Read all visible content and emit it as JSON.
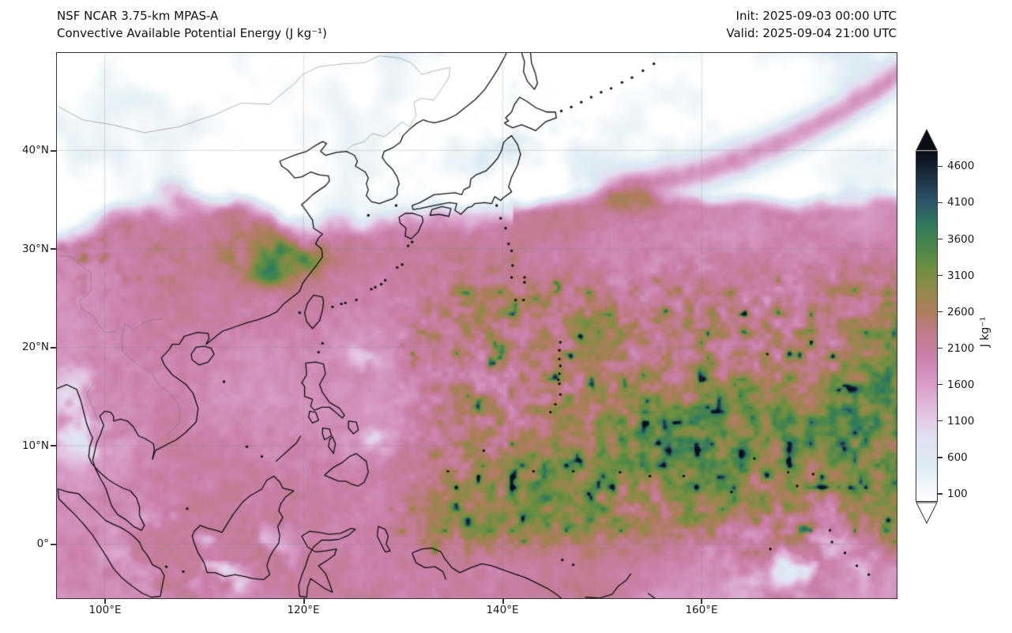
{
  "title": {
    "line1": "NSF NCAR 3.75-km MPAS-A",
    "line2": "Convective Available Potential Energy (J kg⁻¹)"
  },
  "timestamps": {
    "init": "Init: 2025-09-03 00:00 UTC",
    "valid": "Valid: 2025-09-04 21:00 UTC"
  },
  "axes": {
    "y_ticks": [
      "40°N",
      "30°N",
      "20°N",
      "10°N",
      "0°"
    ],
    "x_ticks": [
      "100°E",
      "120°E",
      "140°E",
      "160°E"
    ]
  },
  "colorbar": {
    "unit": "J kg⁻¹",
    "tick_labels": [
      "4600",
      "4100",
      "3600",
      "3100",
      "2600",
      "2100",
      "1600",
      "1100",
      "600",
      "100"
    ],
    "tick_values": [
      4600,
      4100,
      3600,
      3100,
      2600,
      2100,
      1600,
      1100,
      600,
      100
    ],
    "range": [
      0,
      4800
    ],
    "stops": [
      {
        "v": 0,
        "c": "#ffffff"
      },
      {
        "v": 500,
        "c": "#dcebf3"
      },
      {
        "v": 900,
        "c": "#e2dff0"
      },
      {
        "v": 1200,
        "c": "#e2c3e0"
      },
      {
        "v": 1600,
        "c": "#d79cc6"
      },
      {
        "v": 2000,
        "c": "#c97fa8"
      },
      {
        "v": 2300,
        "c": "#c07b8c"
      },
      {
        "v": 2600,
        "c": "#ad7d5c"
      },
      {
        "v": 2900,
        "c": "#91894a"
      },
      {
        "v": 3200,
        "c": "#6e8f41"
      },
      {
        "v": 3500,
        "c": "#49864b"
      },
      {
        "v": 3800,
        "c": "#2f7a5e"
      },
      {
        "v": 4100,
        "c": "#2f566b"
      },
      {
        "v": 4400,
        "c": "#1f3549"
      },
      {
        "v": 4800,
        "c": "#0a0f16"
      }
    ]
  }
}
